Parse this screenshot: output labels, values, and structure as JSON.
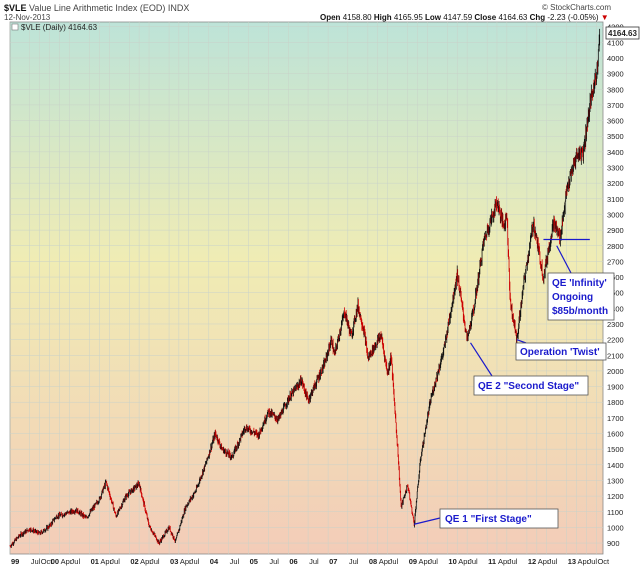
{
  "header": {
    "symbol": "$VLE",
    "description": "Value Line Arithmetic Index (EOD) INDX",
    "date": "12-Nov-2013",
    "copyright": "© StockCharts.com",
    "open_label": "Open",
    "open_value": "4158.80",
    "high_label": "High",
    "high_value": "4165.95",
    "low_label": "Low",
    "low_value": "4147.59",
    "close_label": "Close",
    "close_value": "4164.63",
    "chg_label": "Chg",
    "chg_value": "-2.23 (-0.05%)",
    "chg_arrow": "▼"
  },
  "legend": {
    "text": "$VLE (Daily) 4164.63"
  },
  "last_price_tag": "4164.63",
  "colors": {
    "down": "#cc0000",
    "up": "#111111",
    "annotation": "#1a1acc",
    "grid": "#c9d2c9"
  },
  "annotations": [
    {
      "text": "QE 1 \"First Stage\""
    },
    {
      "text": "QE 2 \"Second Stage\""
    },
    {
      "text": "Operation 'Twist'"
    },
    {
      "text": "QE 'Infinity'"
    },
    {
      "text": "Ongoing"
    },
    {
      "text": "$85b/month"
    }
  ],
  "chart_data": {
    "type": "ohlc",
    "title": "$VLE Value Line Arithmetic Index (EOD) INDX",
    "x_ticks": [
      {
        "date": "1999-01",
        "label": "99"
      },
      {
        "date": "1999-07",
        "label": "Jul"
      },
      {
        "date": "1999-10",
        "label": "Oct"
      },
      {
        "date": "2000-01",
        "label": "00"
      },
      {
        "date": "2000-04",
        "label": "Apr"
      },
      {
        "date": "2000-07",
        "label": "Jul"
      },
      {
        "date": "2001-01",
        "label": "01"
      },
      {
        "date": "2001-04",
        "label": "Apr"
      },
      {
        "date": "2001-07",
        "label": "Jul"
      },
      {
        "date": "2002-01",
        "label": "02"
      },
      {
        "date": "2002-04",
        "label": "Apr"
      },
      {
        "date": "2002-07",
        "label": "Jul"
      },
      {
        "date": "2003-01",
        "label": "03"
      },
      {
        "date": "2003-04",
        "label": "Apr"
      },
      {
        "date": "2003-07",
        "label": "Jul"
      },
      {
        "date": "2004-01",
        "label": "04"
      },
      {
        "date": "2004-07",
        "label": "Jul"
      },
      {
        "date": "2005-01",
        "label": "05"
      },
      {
        "date": "2005-07",
        "label": "Jul"
      },
      {
        "date": "2006-01",
        "label": "06"
      },
      {
        "date": "2006-07",
        "label": "Jul"
      },
      {
        "date": "2007-01",
        "label": "07"
      },
      {
        "date": "2007-07",
        "label": "Jul"
      },
      {
        "date": "2008-01",
        "label": "08"
      },
      {
        "date": "2008-04",
        "label": "Apr"
      },
      {
        "date": "2008-07",
        "label": "Jul"
      },
      {
        "date": "2009-01",
        "label": "09"
      },
      {
        "date": "2009-04",
        "label": "Apr"
      },
      {
        "date": "2009-07",
        "label": "Jul"
      },
      {
        "date": "2010-01",
        "label": "10"
      },
      {
        "date": "2010-04",
        "label": "Apr"
      },
      {
        "date": "2010-07",
        "label": "Jul"
      },
      {
        "date": "2011-01",
        "label": "11"
      },
      {
        "date": "2011-04",
        "label": "Apr"
      },
      {
        "date": "2011-07",
        "label": "Jul"
      },
      {
        "date": "2012-01",
        "label": "12"
      },
      {
        "date": "2012-04",
        "label": "Apr"
      },
      {
        "date": "2012-07",
        "label": "Jul"
      },
      {
        "date": "2013-01",
        "label": "13"
      },
      {
        "date": "2013-04",
        "label": "Apr"
      },
      {
        "date": "2013-07",
        "label": "Jul"
      },
      {
        "date": "2013-10",
        "label": "Oct"
      }
    ],
    "y_ticks": [
      900,
      1000,
      1100,
      1200,
      1300,
      1400,
      1500,
      1600,
      1700,
      1800,
      1900,
      2000,
      2100,
      2200,
      2300,
      2400,
      2500,
      2600,
      2700,
      2800,
      2900,
      3000,
      3100,
      3200,
      3300,
      3400,
      3500,
      3600,
      3700,
      3800,
      3900,
      4000,
      4100,
      4200
    ],
    "ylim": [
      830,
      4230
    ],
    "xlim": [
      "1999-01-01",
      "2013-11-30"
    ],
    "grid": true,
    "series": [
      {
        "values": [
          {
            "date": "1999-01",
            "value": 880
          },
          {
            "date": "1999-04",
            "value": 950
          },
          {
            "date": "1999-07",
            "value": 990
          },
          {
            "date": "1999-10",
            "value": 960
          },
          {
            "date": "2000-01",
            "value": 1010
          },
          {
            "date": "2000-03",
            "value": 1070
          },
          {
            "date": "2000-06",
            "value": 1090
          },
          {
            "date": "2000-09",
            "value": 1110
          },
          {
            "date": "2000-12",
            "value": 1060
          },
          {
            "date": "2001-04",
            "value": 1180
          },
          {
            "date": "2001-06",
            "value": 1290
          },
          {
            "date": "2001-09",
            "value": 1070
          },
          {
            "date": "2001-12",
            "value": 1200
          },
          {
            "date": "2002-04",
            "value": 1280
          },
          {
            "date": "2002-07",
            "value": 1010
          },
          {
            "date": "2002-10",
            "value": 900
          },
          {
            "date": "2003-01",
            "value": 1000
          },
          {
            "date": "2003-03",
            "value": 910
          },
          {
            "date": "2003-06",
            "value": 1130
          },
          {
            "date": "2003-09",
            "value": 1230
          },
          {
            "date": "2003-12",
            "value": 1400
          },
          {
            "date": "2004-03",
            "value": 1600
          },
          {
            "date": "2004-05",
            "value": 1500
          },
          {
            "date": "2004-08",
            "value": 1450
          },
          {
            "date": "2004-12",
            "value": 1640
          },
          {
            "date": "2005-04",
            "value": 1590
          },
          {
            "date": "2005-07",
            "value": 1740
          },
          {
            "date": "2005-10",
            "value": 1690
          },
          {
            "date": "2006-01",
            "value": 1820
          },
          {
            "date": "2006-05",
            "value": 1940
          },
          {
            "date": "2006-07",
            "value": 1810
          },
          {
            "date": "2006-12",
            "value": 2050
          },
          {
            "date": "2007-02",
            "value": 2200
          },
          {
            "date": "2007-03",
            "value": 2100
          },
          {
            "date": "2007-06",
            "value": 2380
          },
          {
            "date": "2007-08",
            "value": 2220
          },
          {
            "date": "2007-10",
            "value": 2420
          },
          {
            "date": "2007-12",
            "value": 2240
          },
          {
            "date": "2008-01",
            "value": 2080
          },
          {
            "date": "2008-05",
            "value": 2230
          },
          {
            "date": "2008-07",
            "value": 1980
          },
          {
            "date": "2008-08",
            "value": 2100
          },
          {
            "date": "2008-10",
            "value": 1500
          },
          {
            "date": "2008-11",
            "value": 1130
          },
          {
            "date": "2009-01",
            "value": 1270
          },
          {
            "date": "2009-03",
            "value": 1020
          },
          {
            "date": "2009-05",
            "value": 1450
          },
          {
            "date": "2009-08",
            "value": 1820
          },
          {
            "date": "2009-12",
            "value": 2140
          },
          {
            "date": "2010-04",
            "value": 2620
          },
          {
            "date": "2010-07",
            "value": 2200
          },
          {
            "date": "2010-09",
            "value": 2400
          },
          {
            "date": "2010-12",
            "value": 2830
          },
          {
            "date": "2011-04",
            "value": 3080
          },
          {
            "date": "2011-06",
            "value": 2930
          },
          {
            "date": "2011-07",
            "value": 3000
          },
          {
            "date": "2011-08",
            "value": 2440
          },
          {
            "date": "2011-10",
            "value": 2200
          },
          {
            "date": "2011-12",
            "value": 2550
          },
          {
            "date": "2012-03",
            "value": 2950
          },
          {
            "date": "2012-06",
            "value": 2600
          },
          {
            "date": "2012-09",
            "value": 2950
          },
          {
            "date": "2012-11",
            "value": 2850
          },
          {
            "date": "2013-01",
            "value": 3150
          },
          {
            "date": "2013-04",
            "value": 3380
          },
          {
            "date": "2013-06",
            "value": 3400
          },
          {
            "date": "2013-08",
            "value": 3700
          },
          {
            "date": "2013-10",
            "value": 3900
          },
          {
            "date": "2013-11",
            "value": 4164.63
          }
        ]
      }
    ],
    "overlay_lines": [
      {
        "type": "horizontal",
        "y": 2840,
        "from": "2012-06",
        "to": "2013-08"
      }
    ]
  }
}
